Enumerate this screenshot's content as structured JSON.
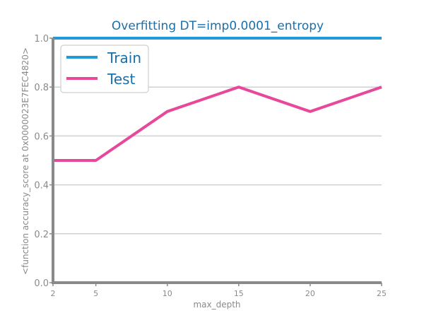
{
  "chart_data": {
    "type": "line",
    "title": "Overfitting DT=imp0.0001_entropy",
    "xlabel": "max_depth",
    "ylabel": "<function accuracy_score at 0x0000023E7FEC4820>",
    "x": [
      2,
      5,
      10,
      15,
      20,
      25
    ],
    "xticks": [
      "2",
      "5",
      "10",
      "15",
      "20",
      "25"
    ],
    "yticks": [
      "0.0",
      "0.2",
      "0.4",
      "0.6",
      "0.8",
      "1.0"
    ],
    "xlim": [
      2,
      25
    ],
    "ylim": [
      0,
      1
    ],
    "grid": true,
    "legend_position": "top-left",
    "series": [
      {
        "name": "Train",
        "color": "#1f9bd7",
        "values": [
          1.0,
          1.0,
          1.0,
          1.0,
          1.0,
          1.0
        ]
      },
      {
        "name": "Test",
        "color": "#e8489a",
        "values": [
          0.5,
          0.5,
          0.7,
          0.8,
          0.7,
          0.8
        ]
      }
    ]
  }
}
